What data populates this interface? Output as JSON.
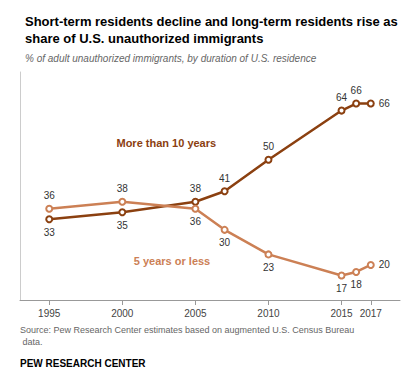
{
  "chart_data": {
    "type": "line",
    "title": "Short-term residents decline and long-term residents rise as share of U.S. unauthorized immigrants",
    "subtitle": "% of adult unauthorized immigrants, by duration of U.S. residence",
    "annotations": [
      "Source: Pew Research Center estimates based on augmented U.S. Census Bureau data.",
      "PEW RESEARCH CENTER"
    ],
    "x": [
      1995,
      2000,
      2005,
      2007,
      2010,
      2015,
      2016,
      2017
    ],
    "series": [
      {
        "name": "More than 10 years",
        "color": "#8B4010",
        "values": [
          33,
          35,
          38,
          41,
          50,
          64,
          66,
          66
        ]
      },
      {
        "name": "5 years or less",
        "color": "#CC8055",
        "values": [
          36,
          38,
          36,
          30,
          23,
          17,
          18,
          20
        ]
      }
    ],
    "xlim": [
      1993,
      2019
    ],
    "ylim": [
      10,
      75
    ],
    "xticks": [
      1995,
      2000,
      2005,
      2010,
      2015,
      2017
    ],
    "yticks": [],
    "grid": false,
    "data_labels": true,
    "tick_labels": "x",
    "marker": "circle",
    "line_style": "solid"
  }
}
